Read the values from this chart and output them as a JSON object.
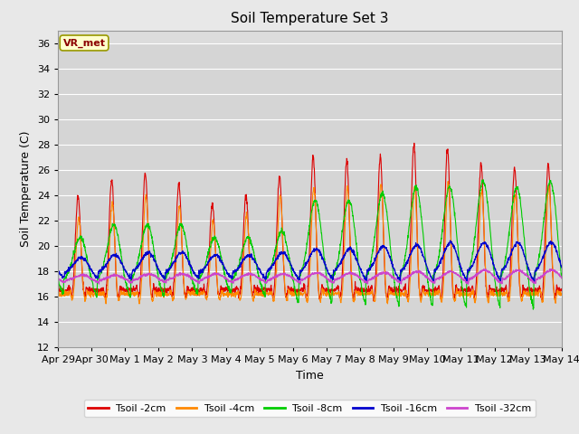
{
  "title": "Soil Temperature Set 3",
  "xlabel": "Time",
  "ylabel": "Soil Temperature (C)",
  "ylim": [
    12,
    37
  ],
  "yticks": [
    12,
    14,
    16,
    18,
    20,
    22,
    24,
    26,
    28,
    30,
    32,
    34,
    36
  ],
  "fig_bg": "#e8e8e8",
  "plot_bg": "#dcdcdc",
  "legend_label": "VR_met",
  "series_colors": {
    "Tsoil -2cm": "#dd0000",
    "Tsoil -4cm": "#ff8800",
    "Tsoil -8cm": "#00cc00",
    "Tsoil -16cm": "#0000cc",
    "Tsoil -32cm": "#cc44cc"
  },
  "x_tick_labels": [
    "Apr 29",
    "Apr 30",
    "May 1",
    "May 2",
    "May 3",
    "May 4",
    "May 5",
    "May 6",
    "May 7",
    "May 8",
    "May 9",
    "May 10",
    "May 11",
    "May 12",
    "May 13",
    "May 14"
  ],
  "n_days": 15,
  "pts_per_day": 144,
  "seed": 12
}
